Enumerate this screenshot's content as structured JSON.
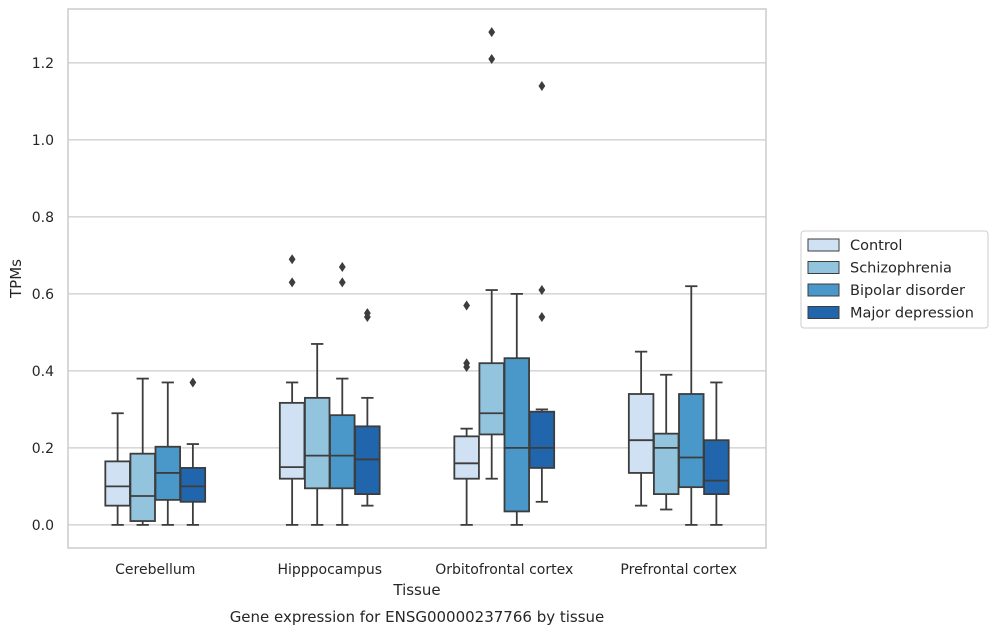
{
  "chart_data": {
    "type": "box",
    "title": "",
    "caption": "Gene expression for ENSG00000237766 by tissue",
    "xlabel": "Tissue",
    "ylabel": "TPMs",
    "ylim": [
      -0.06,
      1.34
    ],
    "yticks": [
      "0.0",
      "0.2",
      "0.4",
      "0.6",
      "0.8",
      "1.0",
      "1.2"
    ],
    "grid": "horizontal",
    "legend_position": "right",
    "categories": [
      "Cerebellum",
      "Hipppocampus",
      "Orbitofrontal cortex",
      "Prefrontal cortex"
    ],
    "series": [
      {
        "name": "Control",
        "color": "#cfe1f2",
        "boxes": [
          {
            "whisker_low": 0.0,
            "q1": 0.05,
            "median": 0.1,
            "q3": 0.165,
            "whisker_high": 0.29,
            "outliers": []
          },
          {
            "whisker_low": 0.0,
            "q1": 0.12,
            "median": 0.15,
            "q3": 0.317,
            "whisker_high": 0.37,
            "outliers": [
              0.63,
              0.69
            ]
          },
          {
            "whisker_low": 0.0,
            "q1": 0.12,
            "median": 0.16,
            "q3": 0.23,
            "whisker_high": 0.25,
            "outliers": [
              0.41,
              0.42,
              0.57
            ]
          },
          {
            "whisker_low": 0.05,
            "q1": 0.135,
            "median": 0.22,
            "q3": 0.34,
            "whisker_high": 0.45,
            "outliers": []
          }
        ]
      },
      {
        "name": "Schizophrenia",
        "color": "#93c4de",
        "boxes": [
          {
            "whisker_low": 0.0,
            "q1": 0.01,
            "median": 0.075,
            "q3": 0.185,
            "whisker_high": 0.38,
            "outliers": []
          },
          {
            "whisker_low": 0.0,
            "q1": 0.095,
            "median": 0.18,
            "q3": 0.33,
            "whisker_high": 0.47,
            "outliers": []
          },
          {
            "whisker_low": 0.12,
            "q1": 0.235,
            "median": 0.29,
            "q3": 0.42,
            "whisker_high": 0.61,
            "outliers": [
              1.21,
              1.28
            ]
          },
          {
            "whisker_low": 0.04,
            "q1": 0.08,
            "median": 0.2,
            "q3": 0.237,
            "whisker_high": 0.39,
            "outliers": []
          }
        ]
      },
      {
        "name": "Bipolar disorder",
        "color": "#4a98c9",
        "boxes": [
          {
            "whisker_low": 0.0,
            "q1": 0.065,
            "median": 0.135,
            "q3": 0.203,
            "whisker_high": 0.37,
            "outliers": []
          },
          {
            "whisker_low": 0.0,
            "q1": 0.095,
            "median": 0.18,
            "q3": 0.285,
            "whisker_high": 0.38,
            "outliers": [
              0.63,
              0.67
            ]
          },
          {
            "whisker_low": 0.0,
            "q1": 0.035,
            "median": 0.2,
            "q3": 0.433,
            "whisker_high": 0.6,
            "outliers": []
          },
          {
            "whisker_low": 0.0,
            "q1": 0.098,
            "median": 0.175,
            "q3": 0.34,
            "whisker_high": 0.62,
            "outliers": []
          }
        ]
      },
      {
        "name": "Major depression",
        "color": "#2166ac",
        "boxes": [
          {
            "whisker_low": 0.0,
            "q1": 0.06,
            "median": 0.1,
            "q3": 0.148,
            "whisker_high": 0.21,
            "outliers": [
              0.37
            ]
          },
          {
            "whisker_low": 0.05,
            "q1": 0.08,
            "median": 0.17,
            "q3": 0.256,
            "whisker_high": 0.33,
            "outliers": [
              0.54,
              0.55
            ]
          },
          {
            "whisker_low": 0.06,
            "q1": 0.148,
            "median": 0.2,
            "q3": 0.294,
            "whisker_high": 0.3,
            "outliers": [
              0.54,
              0.61,
              1.14
            ]
          },
          {
            "whisker_low": 0.0,
            "q1": 0.08,
            "median": 0.115,
            "q3": 0.22,
            "whisker_high": 0.37,
            "outliers": []
          }
        ]
      }
    ]
  }
}
